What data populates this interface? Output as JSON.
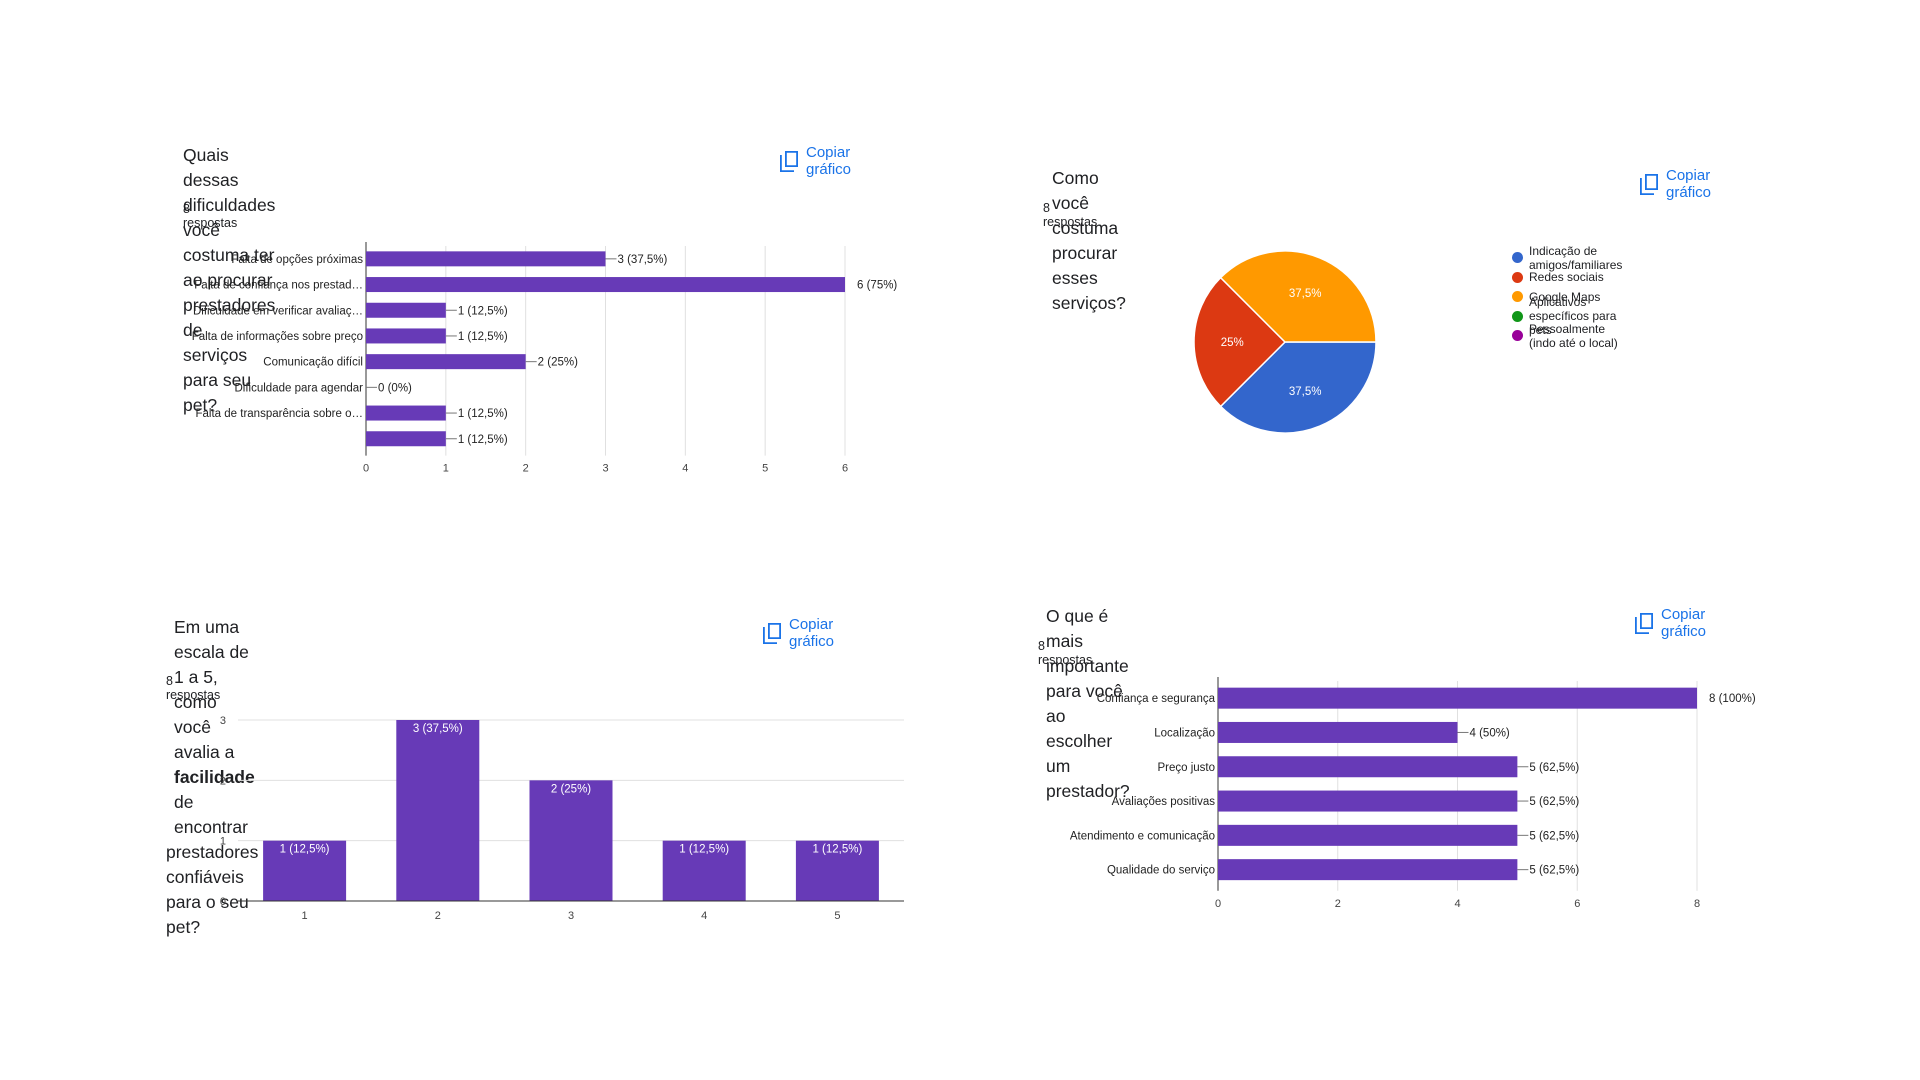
{
  "copy_label": "Copiar gráfico",
  "copy_icon": "copy-icon",
  "accent": "#1a73e8",
  "bar_color": "#673ab7",
  "cards": [
    {
      "title_lines": [
        "Quais dessas dificuldades você costuma ter ao procurar prestadores de",
        "serviços para seu pet?"
      ],
      "responses": "8 respostas"
    },
    {
      "title_lines": [
        "Como você costuma procurar esses serviços?"
      ],
      "responses": "8 respostas"
    },
    {
      "title_pre": "Em uma escala de 1 a 5, como você avalia a ",
      "title_bold": "facilidade",
      "title_post": " de encontrar",
      "title_line2": "prestadores confiáveis para o seu pet?",
      "responses": "8 respostas"
    },
    {
      "title_lines": [
        "O que é mais importante para você ao escolher um prestador?"
      ],
      "responses": "8 respostas"
    }
  ],
  "chart_data": [
    {
      "type": "bar",
      "orientation": "horizontal",
      "categories": [
        "Falta de opções próximas",
        "Falta de confiança nos prestad…",
        "Dificuldade em verificar avaliaç…",
        "Falta de informações sobre preço",
        "Comunicação difícil",
        "Dificuldade para agendar",
        "Falta de transparência sobre o…",
        ""
      ],
      "values": [
        3,
        6,
        1,
        1,
        2,
        0,
        1,
        1
      ],
      "data_labels": [
        "3 (37,5%)",
        "6 (75%)",
        "1 (12,5%)",
        "1 (12,5%)",
        "2 (25%)",
        "0 (0%)",
        "1 (12,5%)",
        "1 (12,5%)"
      ],
      "xlim": [
        0,
        6
      ],
      "ticks": [
        "0",
        "1",
        "2",
        "3",
        "4",
        "5",
        "6"
      ],
      "grid": true
    },
    {
      "type": "pie",
      "categories": [
        "Indicação de amigos/familiares",
        "Redes sociais",
        "Google Maps",
        "Aplicativos específicos para pets",
        "Pessoalmente (indo até o local)"
      ],
      "values": [
        37.5,
        25,
        37.5,
        0,
        0
      ],
      "slice_labels": [
        "37,5%",
        "25%",
        "37,5%",
        "",
        ""
      ],
      "colors": [
        "#3366cc",
        "#dc3912",
        "#ff9900",
        "#109618",
        "#990099"
      ],
      "legend_position": "right"
    },
    {
      "type": "bar",
      "orientation": "vertical",
      "categories": [
        "1",
        "2",
        "3",
        "4",
        "5"
      ],
      "values": [
        1,
        3,
        2,
        1,
        1
      ],
      "data_labels": [
        "1 (12,5%)",
        "3 (37,5%)",
        "2 (25%)",
        "1 (12,5%)",
        "1 (12,5%)"
      ],
      "ylim": [
        0,
        3
      ],
      "ticks": [
        "0",
        "1",
        "2",
        "3"
      ],
      "grid": true
    },
    {
      "type": "bar",
      "orientation": "horizontal",
      "categories": [
        "Confiança e segurança",
        "Localização",
        "Preço justo",
        "Avaliações positivas",
        "Atendimento e comunicação",
        "Qualidade do serviço"
      ],
      "values": [
        8,
        4,
        5,
        5,
        5,
        5
      ],
      "data_labels": [
        "8 (100%)",
        "4 (50%)",
        "5 (62,5%)",
        "5 (62,5%)",
        "5 (62,5%)",
        "5 (62,5%)"
      ],
      "xlim": [
        0,
        8
      ],
      "ticks": [
        "0",
        "2",
        "4",
        "6",
        "8"
      ],
      "grid": true
    }
  ]
}
